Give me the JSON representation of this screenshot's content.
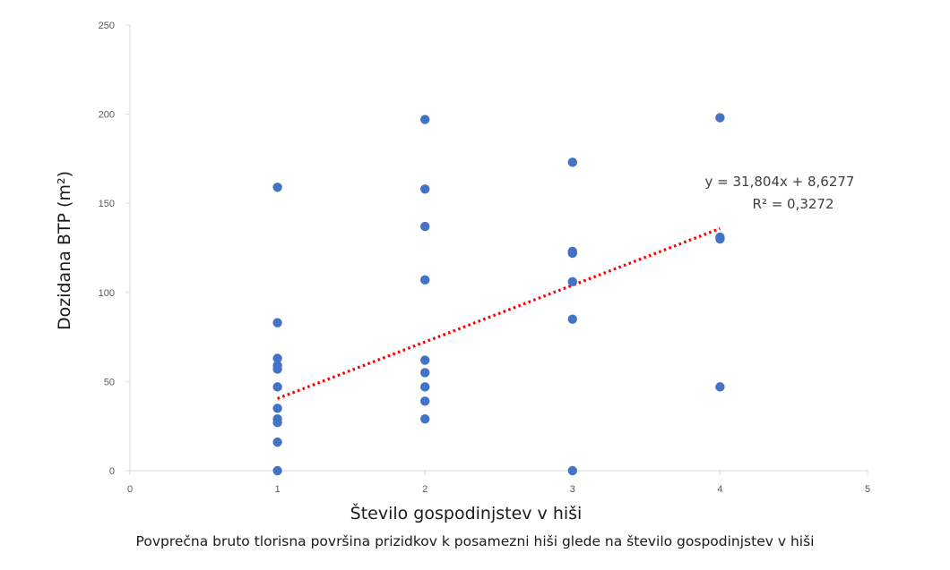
{
  "chart_data": {
    "type": "scatter",
    "xlabel": "Število gospodinjstev v hiši",
    "ylabel": "Dozidana BTP (m²)",
    "xlim": [
      0,
      5
    ],
    "ylim": [
      0,
      250
    ],
    "xticks": [
      "0",
      "1",
      "2",
      "3",
      "4",
      "5"
    ],
    "yticks": [
      "0",
      "50",
      "100",
      "150",
      "200",
      "250"
    ],
    "grid": false,
    "point_color": "#4472C4",
    "points": [
      {
        "x": 1,
        "y": 159
      },
      {
        "x": 1,
        "y": 83
      },
      {
        "x": 1,
        "y": 63
      },
      {
        "x": 1,
        "y": 59
      },
      {
        "x": 1,
        "y": 57
      },
      {
        "x": 1,
        "y": 47
      },
      {
        "x": 1,
        "y": 35
      },
      {
        "x": 1,
        "y": 29
      },
      {
        "x": 1,
        "y": 27
      },
      {
        "x": 1,
        "y": 16
      },
      {
        "x": 1,
        "y": 0
      },
      {
        "x": 2,
        "y": 197
      },
      {
        "x": 2,
        "y": 158
      },
      {
        "x": 2,
        "y": 137
      },
      {
        "x": 2,
        "y": 107
      },
      {
        "x": 2,
        "y": 62
      },
      {
        "x": 2,
        "y": 55
      },
      {
        "x": 2,
        "y": 47
      },
      {
        "x": 2,
        "y": 39
      },
      {
        "x": 2,
        "y": 29
      },
      {
        "x": 3,
        "y": 173
      },
      {
        "x": 3,
        "y": 123
      },
      {
        "x": 3,
        "y": 122
      },
      {
        "x": 3,
        "y": 106
      },
      {
        "x": 3,
        "y": 85
      },
      {
        "x": 3,
        "y": 0
      },
      {
        "x": 4,
        "y": 198
      },
      {
        "x": 4,
        "y": 131
      },
      {
        "x": 4,
        "y": 130
      },
      {
        "x": 4,
        "y": 47
      }
    ],
    "trendline": {
      "type": "linear",
      "slope": 31.804,
      "intercept": 8.6277,
      "x_range": [
        1,
        4
      ],
      "color": "#FF0000",
      "style": "dotted",
      "equation_label": "y = 31,804x + 8,6277",
      "r2_label": "R² = 0,3272"
    }
  },
  "caption": "Povprečna bruto tlorisna površina prizidkov k posamezni hiši glede na število gospodinjstev v hiši"
}
